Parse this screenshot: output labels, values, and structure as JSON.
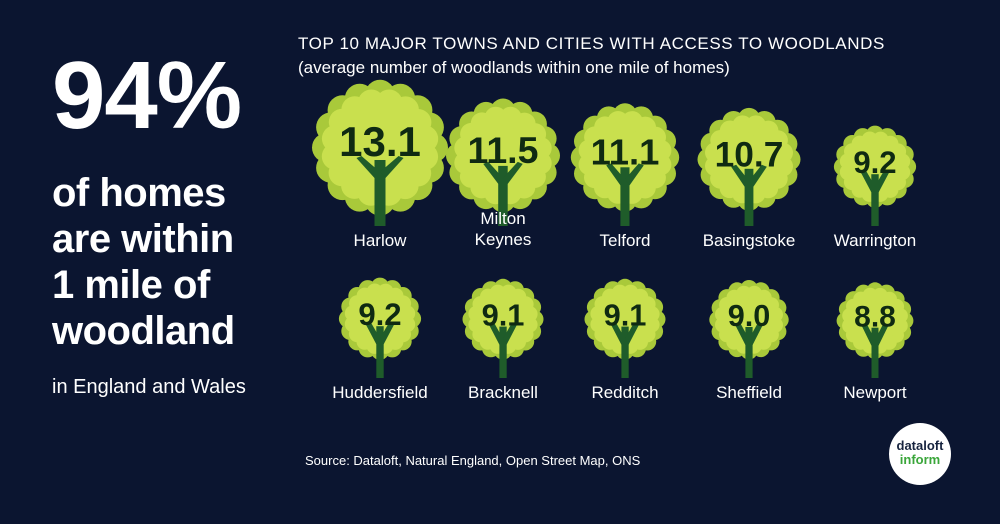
{
  "headline": {
    "percent": "94%",
    "lines": [
      "of homes",
      "are within",
      "1 mile of",
      "woodland"
    ],
    "region": "in England and Wales"
  },
  "source": "Source: Dataloft, Natural England, Open Street Map, ONS",
  "logo": {
    "line1": "dataloft",
    "line2": "inform"
  },
  "colors": {
    "background": "#0b1530",
    "tree_canopy": "#c9e04e",
    "tree_canopy_edge": "#a9c93a",
    "trunk": "#1f5c2a",
    "text": "#ffffff"
  },
  "chart_data": {
    "type": "pictogram",
    "title": "TOP 10 MAJOR TOWNS AND CITIES WITH ACCESS TO WOODLANDS",
    "subtitle": "(average number of woodlands within one mile of homes)",
    "categories": [
      "Harlow",
      "Milton Keynes",
      "Telford",
      "Basingstoke",
      "Warrington",
      "Huddersfield",
      "Bracknell",
      "Redditch",
      "Sheffield",
      "Newport"
    ],
    "category_lines": [
      [
        "Harlow"
      ],
      [
        "Milton",
        "Keynes"
      ],
      [
        "Telford"
      ],
      [
        "Basingstoke"
      ],
      [
        "Warrington"
      ],
      [
        "Huddersfield"
      ],
      [
        "Bracknell"
      ],
      [
        "Redditch"
      ],
      [
        "Sheffield"
      ],
      [
        "Newport"
      ]
    ],
    "values": [
      13.1,
      11.5,
      11.1,
      10.7,
      9.2,
      9.2,
      9.1,
      9.1,
      9.0,
      8.8
    ],
    "value_labels": [
      "13.1",
      "11.5",
      "11.1",
      "10.7",
      "9.2",
      "9.2",
      "9.1",
      "9.1",
      "9.0",
      "8.8"
    ]
  }
}
